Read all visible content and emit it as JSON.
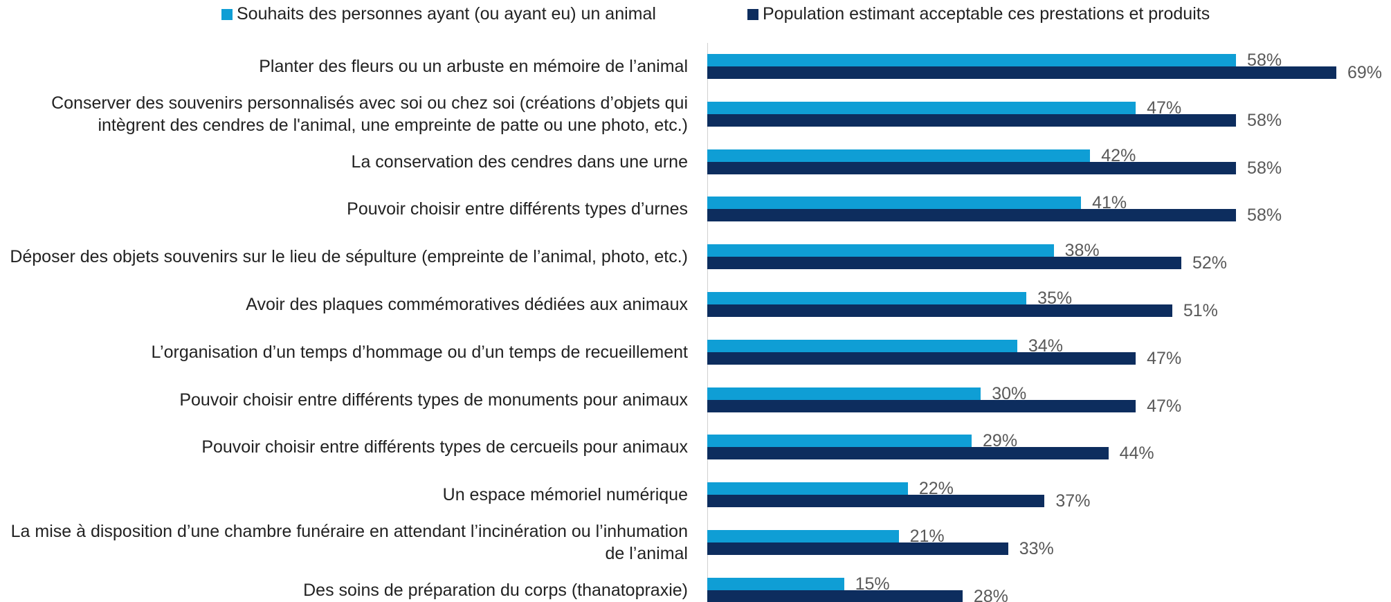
{
  "chart_data": {
    "type": "barh",
    "categories": [
      "Planter des fleurs ou un arbuste en mémoire de l’animal",
      "Conserver des souvenirs personnalisés avec soi ou chez soi (créations d’objets qui intègrent des cendres de l'animal, une empreinte de patte ou une photo, etc.)",
      "La conservation des cendres dans une urne",
      "Pouvoir choisir entre différents types d’urnes",
      "Déposer des objets souvenirs sur le lieu de sépulture (empreinte de l’animal, photo, etc.)",
      "Avoir des plaques commémoratives dédiées aux animaux",
      "L’organisation d’un temps d’hommage ou d’un temps de recueillement",
      "Pouvoir choisir entre différents types de monuments pour animaux",
      "Pouvoir choisir entre différents types de cercueils pour animaux",
      "Un espace mémoriel numérique",
      "La mise à disposition d’une chambre funéraire en attendant l’incinération ou l’inhumation de l’animal",
      "Des soins de préparation du corps (thanatopraxie)"
    ],
    "series": [
      {
        "name": "Souhaits des personnes ayant (ou ayant eu) un animal",
        "color": "#0f9ed5",
        "values": [
          58,
          47,
          42,
          41,
          38,
          35,
          34,
          30,
          29,
          22,
          21,
          15
        ],
        "value_labels": [
          "58%",
          "47%",
          "42%",
          "41%",
          "38%",
          "35%",
          "34%",
          "30%",
          "29%",
          "22%",
          "21%",
          "15%"
        ]
      },
      {
        "name": "Population estimant acceptable ces prestations et produits",
        "color": "#0d2d5e",
        "values": [
          69,
          58,
          58,
          58,
          52,
          51,
          47,
          47,
          44,
          37,
          33,
          28
        ],
        "value_labels": [
          "69%",
          "58%",
          "58%",
          "58%",
          "52%",
          "51%",
          "47%",
          "47%",
          "44%",
          "37%",
          "33%",
          "28%"
        ]
      }
    ],
    "xlim": [
      0,
      75
    ],
    "legend": "top"
  }
}
